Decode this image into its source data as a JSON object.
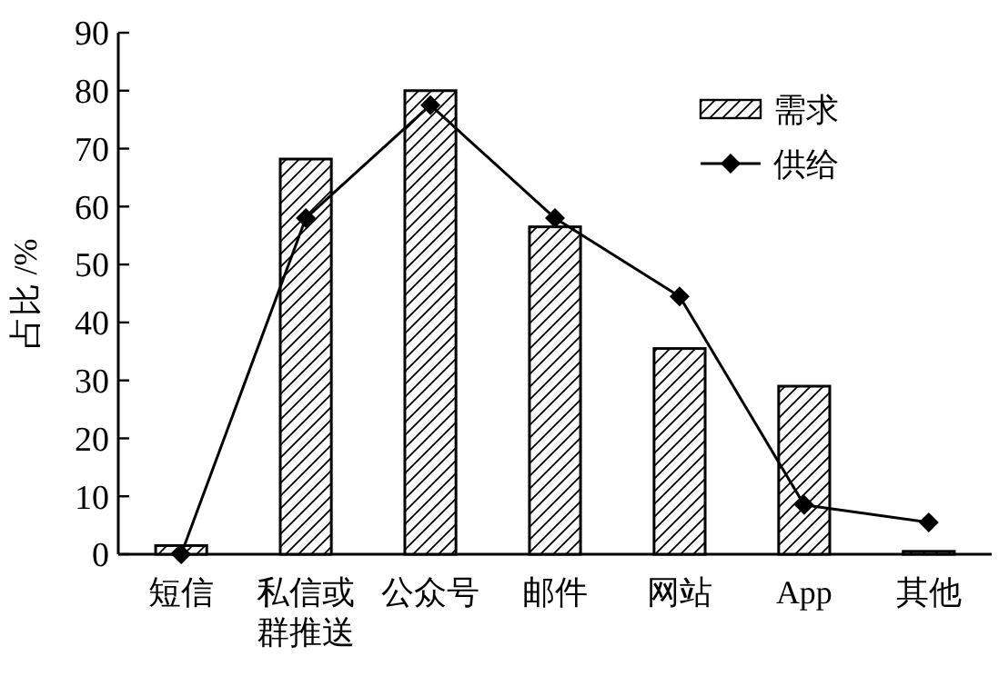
{
  "chart_data": {
    "type": "bar",
    "ylabel": "占比 /%",
    "categories": [
      "短信",
      "私信或群推送",
      "公众号",
      "邮件",
      "网站",
      "App",
      "其他"
    ],
    "series": [
      {
        "name": "需求",
        "color": "#000000",
        "values": [
          1.5,
          68.2,
          80,
          56.5,
          35.5,
          29,
          0.5
        ]
      },
      {
        "name": "供给",
        "type": "line",
        "color": "#000000",
        "marker": "diamond",
        "values": [
          0,
          58,
          77.5,
          58,
          44.5,
          8.5,
          5.5
        ]
      }
    ],
    "ylim": [
      0,
      90
    ],
    "yticks": [
      0,
      10,
      20,
      30,
      40,
      50,
      60,
      70,
      80,
      90
    ],
    "grid": false,
    "legend": "top right"
  }
}
